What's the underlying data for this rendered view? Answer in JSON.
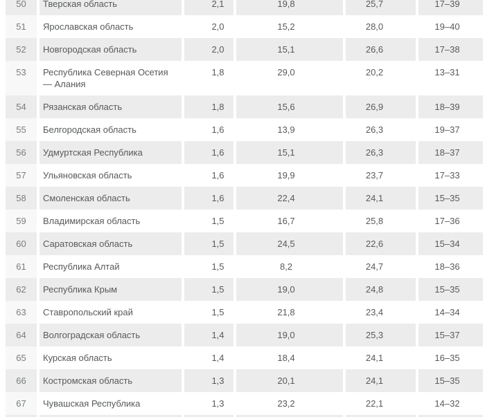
{
  "colors": {
    "row_alt_background": "#ececec",
    "rank_cell_light_background": "#f8f8f8",
    "text": "#57595b",
    "rank_text": "#797c7e",
    "page_background": "#ffffff"
  },
  "table": {
    "first_visible_row_clipped": true,
    "rows": [
      {
        "rank": "50",
        "region": "Тверская область",
        "v1": "2,1",
        "v2": "19,8",
        "v3": "25,7",
        "range": "17–39"
      },
      {
        "rank": "51",
        "region": "Ярославская область",
        "v1": "2,0",
        "v2": "15,2",
        "v3": "28,0",
        "range": "19–40"
      },
      {
        "rank": "52",
        "region": "Новгородская область",
        "v1": "2,0",
        "v2": "15,1",
        "v3": "26,6",
        "range": "17–38"
      },
      {
        "rank": "53",
        "region": "Республика Северная Осетия — Алания",
        "v1": "1,8",
        "v2": "29,0",
        "v3": "20,2",
        "range": "13–31"
      },
      {
        "rank": "54",
        "region": "Рязанская область",
        "v1": "1,8",
        "v2": "15,6",
        "v3": "26,9",
        "range": "18–39"
      },
      {
        "rank": "55",
        "region": "Белгородская область",
        "v1": "1,6",
        "v2": "13,9",
        "v3": "26,3",
        "range": "19–37"
      },
      {
        "rank": "56",
        "region": "Удмуртская Республика",
        "v1": "1,6",
        "v2": "15,1",
        "v3": "26,3",
        "range": "18–37"
      },
      {
        "rank": "57",
        "region": "Ульяновская область",
        "v1": "1,6",
        "v2": "19,9",
        "v3": "23,7",
        "range": "17–33"
      },
      {
        "rank": "58",
        "region": "Смоленская область",
        "v1": "1,6",
        "v2": "22,4",
        "v3": "24,1",
        "range": "15–35"
      },
      {
        "rank": "59",
        "region": "Владимирская область",
        "v1": "1,5",
        "v2": "16,7",
        "v3": "25,8",
        "range": "17–36"
      },
      {
        "rank": "60",
        "region": "Саратовская область",
        "v1": "1,5",
        "v2": "24,5",
        "v3": "22,6",
        "range": "15–34"
      },
      {
        "rank": "61",
        "region": "Республика Алтай",
        "v1": "1,5",
        "v2": "8,2",
        "v3": "24,7",
        "range": "18–36"
      },
      {
        "rank": "62",
        "region": "Республика Крым",
        "v1": "1,5",
        "v2": "19,0",
        "v3": "24,8",
        "range": "15–35"
      },
      {
        "rank": "63",
        "region": "Ставропольский край",
        "v1": "1,5",
        "v2": "21,8",
        "v3": "23,4",
        "range": "14–34"
      },
      {
        "rank": "64",
        "region": "Волгоградская область",
        "v1": "1,4",
        "v2": "19,0",
        "v3": "25,3",
        "range": "15–37"
      },
      {
        "rank": "65",
        "region": "Курская область",
        "v1": "1,4",
        "v2": "18,4",
        "v3": "24,1",
        "range": "16–35"
      },
      {
        "rank": "66",
        "region": "Костромская область",
        "v1": "1,3",
        "v2": "20,1",
        "v3": "24,1",
        "range": "15–35"
      },
      {
        "rank": "67",
        "region": "Чувашская Республика",
        "v1": "1,3",
        "v2": "23,2",
        "v3": "22,1",
        "range": "14–32"
      }
    ]
  }
}
